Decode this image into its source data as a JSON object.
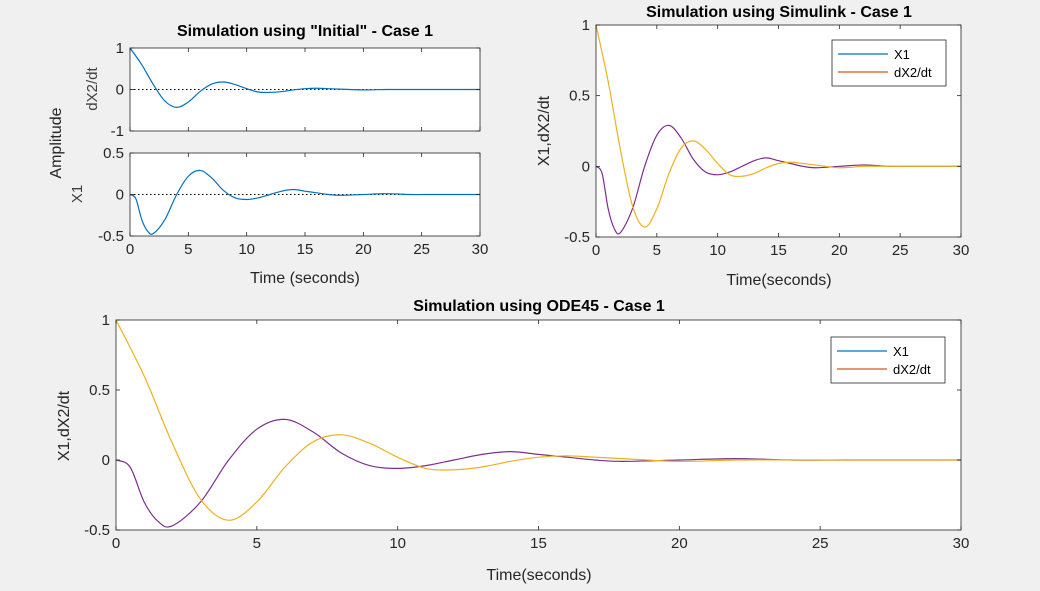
{
  "colors": {
    "background": "#f0f0f0",
    "axes_face": "#ffffff",
    "axis": "#262626",
    "initial_line": "#0072bd",
    "legend_x1": "#0072bd",
    "legend_dx2": "#d95319",
    "plot_x1": "#7e2f8e",
    "plot_dx2": "#edb120"
  },
  "chart_data": [
    {
      "id": "initial",
      "type": "line",
      "title": "Simulation using \"Initial\" - Case 1",
      "shared_ylabel": "Amplitude",
      "xlabel": "Time (seconds)",
      "xlim": [
        0,
        30
      ],
      "x_ticks": [
        "0",
        "5",
        "10",
        "15",
        "20",
        "25",
        "30"
      ],
      "grid": false,
      "subplots": [
        {
          "ylabel": "dX2/dt",
          "ylim": [
            -1,
            1
          ],
          "y_ticks": [
            "1",
            "0",
            "-1"
          ],
          "series": [
            {
              "x": [
                0,
                1,
                2,
                3,
                4,
                5,
                6,
                7,
                8,
                9,
                10,
                11,
                12,
                13,
                14,
                15,
                16,
                17,
                18,
                20,
                22,
                24,
                26,
                28,
                30
              ],
              "values": [
                1.0,
                0.6,
                0.12,
                -0.28,
                -0.43,
                -0.3,
                -0.05,
                0.13,
                0.18,
                0.12,
                0.02,
                -0.06,
                -0.07,
                -0.05,
                -0.01,
                0.02,
                0.03,
                0.02,
                0.01,
                -0.01,
                0.0,
                0.0,
                0.0,
                0.0,
                0.0
              ]
            }
          ]
        },
        {
          "ylabel": "X1",
          "ylim": [
            -0.5,
            0.5
          ],
          "y_ticks": [
            "0.5",
            "0",
            "-0.5"
          ],
          "series": [
            {
              "x": [
                0,
                0.5,
                1,
                1.5,
                2,
                3,
                4,
                5,
                6,
                7,
                8,
                9,
                10,
                11,
                12,
                13,
                14,
                15,
                16,
                17,
                18,
                20,
                22,
                24,
                26,
                28,
                30
              ],
              "values": [
                0.0,
                -0.05,
                -0.3,
                -0.44,
                -0.47,
                -0.3,
                0.0,
                0.22,
                0.29,
                0.2,
                0.05,
                -0.04,
                -0.06,
                -0.04,
                0.0,
                0.04,
                0.06,
                0.04,
                0.02,
                0.0,
                -0.01,
                0.0,
                0.01,
                0.0,
                0.0,
                0.0,
                0.0
              ]
            }
          ]
        }
      ]
    },
    {
      "id": "simulink",
      "type": "line",
      "title": "Simulation using Simulink - Case 1",
      "xlabel": "Time(seconds)",
      "ylabel": "X1,dX2/dt",
      "xlim": [
        0,
        30
      ],
      "ylim": [
        -0.5,
        1
      ],
      "x_ticks": [
        "0",
        "5",
        "10",
        "15",
        "20",
        "25",
        "30"
      ],
      "y_ticks": [
        "1",
        "0.5",
        "0",
        "-0.5"
      ],
      "grid": false,
      "legend": {
        "position": "top-right",
        "entries": [
          "X1",
          "dX2/dt"
        ]
      },
      "series": [
        {
          "name": "X1",
          "x": [
            0,
            0.5,
            1,
            1.5,
            2,
            3,
            4,
            5,
            6,
            7,
            8,
            9,
            10,
            11,
            12,
            13,
            14,
            15,
            16,
            17,
            18,
            20,
            22,
            24,
            26,
            28,
            30
          ],
          "values": [
            0.0,
            -0.05,
            -0.3,
            -0.44,
            -0.47,
            -0.3,
            0.0,
            0.22,
            0.29,
            0.2,
            0.05,
            -0.04,
            -0.06,
            -0.04,
            0.0,
            0.04,
            0.06,
            0.04,
            0.02,
            0.0,
            -0.01,
            0.0,
            0.01,
            0.0,
            0.0,
            0.0,
            0.0
          ]
        },
        {
          "name": "dX2/dt",
          "x": [
            0,
            1,
            2,
            3,
            4,
            5,
            6,
            7,
            8,
            9,
            10,
            11,
            12,
            13,
            14,
            15,
            16,
            17,
            18,
            20,
            22,
            24,
            26,
            28,
            30
          ],
          "values": [
            1.0,
            0.6,
            0.12,
            -0.28,
            -0.43,
            -0.3,
            -0.05,
            0.13,
            0.18,
            0.12,
            0.02,
            -0.06,
            -0.07,
            -0.05,
            -0.01,
            0.02,
            0.03,
            0.02,
            0.01,
            -0.01,
            0.0,
            0.0,
            0.0,
            0.0,
            0.0
          ]
        }
      ]
    },
    {
      "id": "ode45",
      "type": "line",
      "title": "Simulation using ODE45 - Case 1",
      "xlabel": "Time(seconds)",
      "ylabel": "X1,dX2/dt",
      "xlim": [
        0,
        30
      ],
      "ylim": [
        -0.5,
        1
      ],
      "x_ticks": [
        "0",
        "5",
        "10",
        "15",
        "20",
        "25",
        "30"
      ],
      "y_ticks": [
        "1",
        "0.5",
        "0",
        "-0.5"
      ],
      "grid": false,
      "legend": {
        "position": "top-right",
        "entries": [
          "X1",
          "dX2/dt"
        ]
      },
      "series": [
        {
          "name": "X1",
          "x": [
            0,
            0.5,
            1,
            1.5,
            2,
            3,
            4,
            5,
            6,
            7,
            8,
            9,
            10,
            11,
            12,
            13,
            14,
            15,
            16,
            17,
            18,
            20,
            22,
            24,
            26,
            28,
            30
          ],
          "values": [
            0.0,
            -0.05,
            -0.3,
            -0.44,
            -0.47,
            -0.3,
            0.0,
            0.22,
            0.29,
            0.2,
            0.05,
            -0.04,
            -0.06,
            -0.04,
            0.0,
            0.04,
            0.06,
            0.04,
            0.02,
            0.0,
            -0.01,
            0.0,
            0.01,
            0.0,
            0.0,
            0.0,
            0.0
          ]
        },
        {
          "name": "dX2/dt",
          "x": [
            0,
            1,
            2,
            3,
            4,
            5,
            6,
            7,
            8,
            9,
            10,
            11,
            12,
            13,
            14,
            15,
            16,
            17,
            18,
            20,
            22,
            24,
            26,
            28,
            30
          ],
          "values": [
            1.0,
            0.6,
            0.12,
            -0.28,
            -0.43,
            -0.3,
            -0.05,
            0.13,
            0.18,
            0.12,
            0.02,
            -0.06,
            -0.07,
            -0.05,
            -0.01,
            0.02,
            0.03,
            0.02,
            0.01,
            -0.01,
            0.0,
            0.0,
            0.0,
            0.0,
            0.0
          ]
        }
      ]
    }
  ]
}
